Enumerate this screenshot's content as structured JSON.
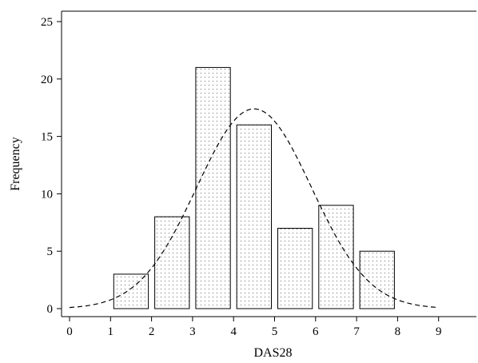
{
  "chart_data": {
    "type": "bar",
    "subtype": "histogram",
    "xlabel": "DAS28",
    "ylabel": "Frequency",
    "xlim": [
      0,
      9
    ],
    "ylim": [
      0,
      25
    ],
    "x_ticks": [
      "0",
      "1",
      "2",
      "3",
      "4",
      "5",
      "6",
      "7",
      "8",
      "9"
    ],
    "y_ticks": [
      "0",
      "5",
      "10",
      "15",
      "20",
      "25"
    ],
    "bins": [
      {
        "start": 1,
        "end": 2,
        "value": 3
      },
      {
        "start": 2,
        "end": 3,
        "value": 8
      },
      {
        "start": 3,
        "end": 4,
        "value": 21
      },
      {
        "start": 4,
        "end": 5,
        "value": 16
      },
      {
        "start": 5,
        "end": 6,
        "value": 7
      },
      {
        "start": 6,
        "end": 7,
        "value": 9
      },
      {
        "start": 7,
        "end": 8,
        "value": 5
      }
    ],
    "normal_curve": {
      "mean": 4.5,
      "sd": 1.4,
      "peak": 17.4,
      "style": "dashed"
    },
    "bar_fill": "dotted",
    "grid": false
  }
}
